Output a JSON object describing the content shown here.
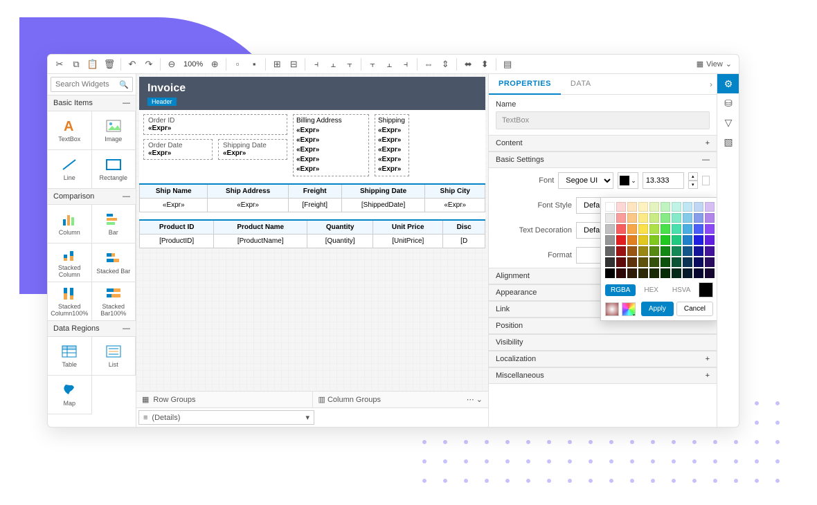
{
  "toolbar": {
    "zoom": "100%",
    "view_label": "View"
  },
  "search": {
    "placeholder": "Search Widgets"
  },
  "sections": {
    "basic": {
      "title": "Basic Items",
      "items": [
        {
          "label": "TextBox"
        },
        {
          "label": "Image"
        },
        {
          "label": "Line"
        },
        {
          "label": "Rectangle"
        }
      ]
    },
    "comparison": {
      "title": "Comparison",
      "items": [
        {
          "label": "Column"
        },
        {
          "label": "Bar"
        },
        {
          "label": "Stacked Column"
        },
        {
          "label": "Stacked Bar"
        },
        {
          "label": "Stacked Column100%"
        },
        {
          "label": "Stacked Bar100%"
        }
      ]
    },
    "data_regions": {
      "title": "Data Regions",
      "items": [
        {
          "label": "Table"
        },
        {
          "label": "List"
        },
        {
          "label": "Map"
        }
      ]
    }
  },
  "report": {
    "title": "Invoice",
    "header_tag": "Header",
    "fields": {
      "order_id_label": "Order ID",
      "order_date_label": "Order Date",
      "shipping_date_label": "Shipping Date",
      "billing_label": "Billing Address",
      "shipping_label": "Shipping",
      "expr": "«Expr»"
    },
    "table1": {
      "headers": [
        "Ship Name",
        "Ship Address",
        "Freight",
        "Shipping Date",
        "Ship City"
      ],
      "row": [
        "«Expr»",
        "«Expr»",
        "[Freight]",
        "[ShippedDate]",
        "«Expr»"
      ]
    },
    "table2": {
      "headers": [
        "Product ID",
        "Product Name",
        "Quantity",
        "Unit Price",
        "Disc"
      ],
      "row": [
        "[ProductID]",
        "[ProductName]",
        "[Quantity]",
        "[UnitPrice]",
        "[D"
      ]
    }
  },
  "groups": {
    "row_label": "Row Groups",
    "col_label": "Column Groups",
    "details": "(Details)"
  },
  "props": {
    "tab_properties": "PROPERTIES",
    "tab_data": "DATA",
    "name_label": "Name",
    "name_value": "TextBox",
    "content_label": "Content",
    "basic_label": "Basic Settings",
    "font_label": "Font",
    "font_value": "Segoe UI",
    "font_size": "13.333",
    "font_style_label": "Font Style",
    "font_style_value": "Default",
    "decoration_label": "Text Decoration",
    "decoration_value": "Default",
    "format_label": "Format",
    "sections": [
      "Alignment",
      "Appearance",
      "Link",
      "Position",
      "Visibility",
      "Localization",
      "Miscellaneous"
    ]
  },
  "picker": {
    "tabs": {
      "rgba": "RGBA",
      "hex": "HEX",
      "hsva": "HSVA"
    },
    "apply": "Apply",
    "cancel": "Cancel",
    "colors_row1": [
      "#ffffff",
      "#fdd6d6",
      "#fde5c0",
      "#fef3c0",
      "#e5f3c0",
      "#c0f3c0",
      "#c0f3e5",
      "#c0e5f3",
      "#c0d6f3",
      "#d6c0f3"
    ],
    "colors_row2": [
      "#e8e8e8",
      "#fa9d9d",
      "#fac786",
      "#fcea86",
      "#caea86",
      "#86ea86",
      "#86eaca",
      "#86caea",
      "#869dea",
      "#b186ea"
    ],
    "colors_row3": [
      "#c0c0c0",
      "#f55f5f",
      "#f5a74a",
      "#fae04a",
      "#aee04a",
      "#4ae04a",
      "#4ae0ae",
      "#4aaee0",
      "#4a5ff5",
      "#8c4af5"
    ],
    "colors_row4": [
      "#969696",
      "#e02020",
      "#e08020",
      "#e0c820",
      "#80c820",
      "#20c820",
      "#20c880",
      "#2080c8",
      "#2020e0",
      "#6020e0"
    ],
    "colors_row5": [
      "#646464",
      "#9a1414",
      "#9a5614",
      "#9a8814",
      "#568814",
      "#148814",
      "#148856",
      "#145688",
      "#14149a",
      "#42149a"
    ],
    "colors_row6": [
      "#323232",
      "#5e0c0c",
      "#5e340c",
      "#5e520c",
      "#34520c",
      "#0c520c",
      "#0c5234",
      "#0c3452",
      "#0c0c5e",
      "#280c5e"
    ],
    "colors_row7": [
      "#000000",
      "#2e0606",
      "#2e1a06",
      "#2e2906",
      "#1a2906",
      "#062906",
      "#06291a",
      "#061a29",
      "#06062e",
      "#14062e"
    ]
  },
  "accent": "#0284c7",
  "bg_shape_color": "#7b6cf6"
}
